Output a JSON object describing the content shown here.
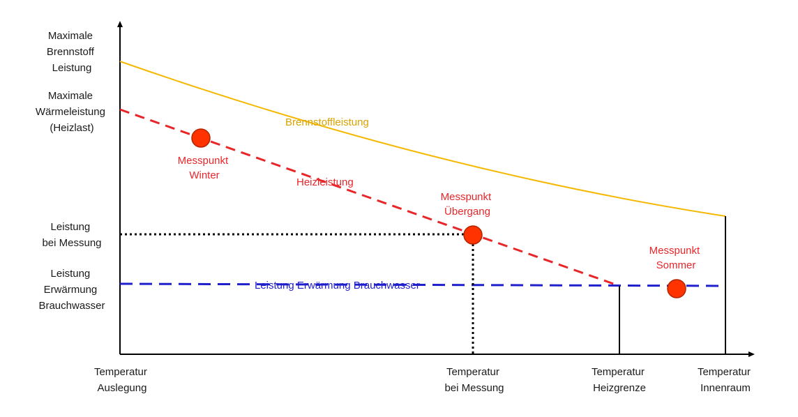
{
  "y_labels": {
    "max_fuel": [
      "Maximale",
      "Brennstoff",
      "Leistung"
    ],
    "max_heat": [
      "Maximale",
      "Wärmeleistung",
      "(Heizlast)"
    ],
    "measured": [
      "Leistung",
      "bei Messung"
    ],
    "hot_water": [
      "Leistung",
      "Erwärmung",
      "Brauchwasser"
    ]
  },
  "x_labels": {
    "design": [
      "Temperatur",
      "Auslegung"
    ],
    "measured": [
      "Temperatur",
      "bei Messung"
    ],
    "heating_limit": [
      "Temperatur",
      "Heizgrenze"
    ],
    "indoor": [
      "Temperatur",
      "Innenraum"
    ]
  },
  "curves": {
    "fuel": {
      "label": "Brennstoffleistung",
      "color": "#f5b800"
    },
    "heating": {
      "label": "Heizleistung",
      "color": "#e8262a"
    },
    "hot_water": {
      "label": "Leistung Erwärmung Brauchwasser",
      "color": "#1f1fcc"
    }
  },
  "points": {
    "winter": {
      "label": [
        "Messpunkt",
        "Winter"
      ]
    },
    "transition": {
      "label": [
        "Messpunkt",
        "Übergang"
      ]
    },
    "summer": {
      "label": [
        "Messpunkt",
        "Sommer"
      ]
    }
  },
  "colors": {
    "axis": "#000000",
    "point_fill": "#ff3300",
    "point_stroke": "#b32400",
    "point_label": "#e8262a"
  }
}
